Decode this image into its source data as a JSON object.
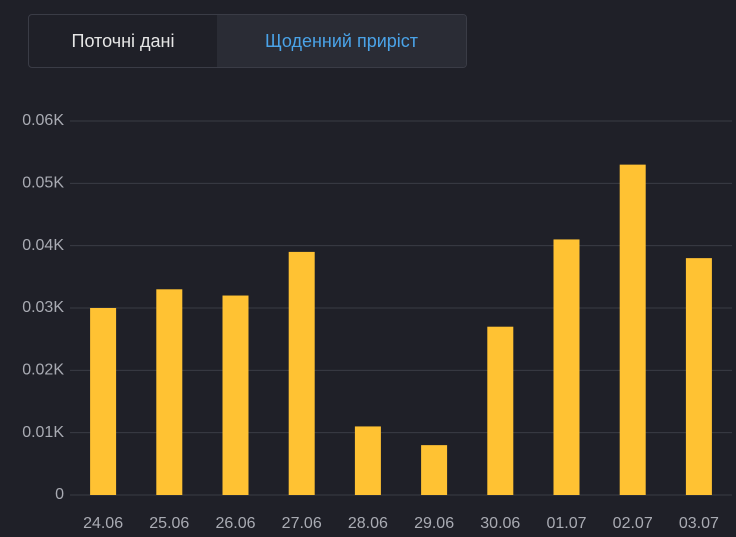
{
  "tabs": [
    "Поточні дані",
    "Щоденний приріст"
  ],
  "chart_data": {
    "type": "bar",
    "categories": [
      "24.06",
      "25.06",
      "26.06",
      "27.06",
      "28.06",
      "29.06",
      "30.06",
      "01.07",
      "02.07",
      "03.07"
    ],
    "values": [
      30,
      33,
      32,
      39,
      11,
      8,
      27,
      41,
      53,
      38
    ],
    "color": "#ffc233",
    "ylim": [
      0,
      60
    ],
    "yticks": [
      0,
      {
        "value": 10,
        "label": "0.01K"
      },
      {
        "value": 20,
        "label": "0.02K"
      },
      {
        "value": 30,
        "label": "0.03K"
      },
      {
        "value": 40,
        "label": "0.04K"
      },
      {
        "value": 50,
        "label": "0.05K"
      },
      {
        "value": 60,
        "label": "0.06K"
      }
    ],
    "grid": true
  }
}
